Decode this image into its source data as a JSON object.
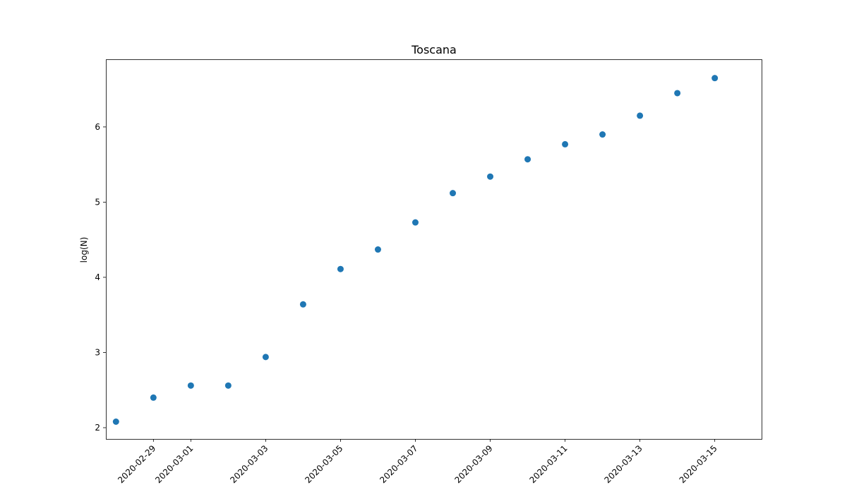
{
  "chart_data": {
    "type": "scatter",
    "title": "Toscana",
    "xlabel": "",
    "ylabel": "log(N)",
    "x_type": "date",
    "xlim": [
      "2020-02-28",
      "2020-03-16"
    ],
    "ylim": [
      1.85,
      6.9
    ],
    "x_ticks": [
      "2020-02-29",
      "2020-03-01",
      "2020-03-03",
      "2020-03-05",
      "2020-03-07",
      "2020-03-09",
      "2020-03-11",
      "2020-03-13",
      "2020-03-15"
    ],
    "y_ticks": [
      2,
      3,
      4,
      5,
      6
    ],
    "marker_color": "#1f77b4",
    "grid": false,
    "points": [
      {
        "x": "2020-02-28",
        "y": 2.08
      },
      {
        "x": "2020-02-29",
        "y": 2.4
      },
      {
        "x": "2020-03-01",
        "y": 2.56
      },
      {
        "x": "2020-03-02",
        "y": 2.56
      },
      {
        "x": "2020-03-03",
        "y": 2.94
      },
      {
        "x": "2020-03-04",
        "y": 3.64
      },
      {
        "x": "2020-03-05",
        "y": 4.11
      },
      {
        "x": "2020-03-06",
        "y": 4.37
      },
      {
        "x": "2020-03-07",
        "y": 4.73
      },
      {
        "x": "2020-03-08",
        "y": 5.12
      },
      {
        "x": "2020-03-09",
        "y": 5.34
      },
      {
        "x": "2020-03-10",
        "y": 5.57
      },
      {
        "x": "2020-03-11",
        "y": 5.77
      },
      {
        "x": "2020-03-12",
        "y": 5.9
      },
      {
        "x": "2020-03-13",
        "y": 6.15
      },
      {
        "x": "2020-03-14",
        "y": 6.45
      },
      {
        "x": "2020-03-15",
        "y": 6.65
      }
    ]
  }
}
